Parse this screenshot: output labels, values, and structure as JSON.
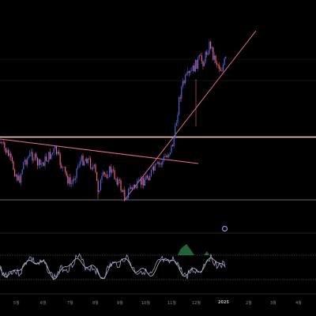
{
  "chart_data": {
    "type": "candlestick",
    "x_tick_labels": [
      "5월",
      "6월",
      "7월",
      "8월",
      "9월",
      "10월",
      "11월",
      "12월",
      "2025",
      "2월",
      "3월",
      "4월"
    ],
    "x_tick_bold": "2025",
    "grid": false,
    "colors": {
      "background": "#000000",
      "up_candle": "#4a63d9",
      "down_candle": "#e8607a",
      "horizontal_level": "#ffd2b0",
      "trendline": "#e86a8e",
      "oscillator_line": "#9aa0c8",
      "oscillator_signal": "#d8d8d8",
      "oscillator_band": "#777777"
    },
    "annotations": [
      {
        "kind": "horizontal_level",
        "name": "resistance-level"
      },
      {
        "kind": "trendline",
        "name": "descending-trendline"
      },
      {
        "kind": "trendline",
        "name": "ascending-trendline"
      }
    ],
    "subpanel": {
      "type": "oscillator",
      "bands": "upper-lower dashed"
    }
  }
}
